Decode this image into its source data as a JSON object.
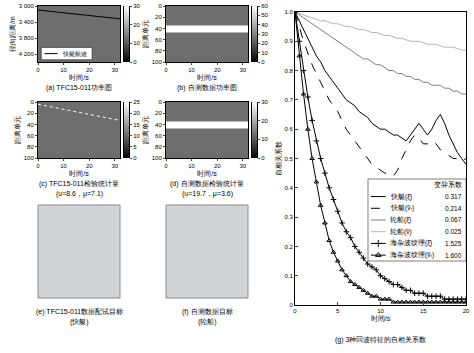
{
  "chart_data": [
    {
      "type": "line",
      "title": "(a) TFC15-011功率图",
      "xlabel": "时间/s",
      "ylabel": "径向距离/m",
      "xlim": [
        0,
        32
      ],
      "xticks": [
        0,
        10,
        20,
        30
      ],
      "ylim": [
        4400,
        3000
      ],
      "yticks": [
        {
          "value": 3000,
          "label": "3 000"
        },
        {
          "value": 3400,
          "label": "3 400"
        },
        {
          "value": 3800,
          "label": "3 800"
        },
        {
          "value": 4200,
          "label": "4 200"
        }
      ],
      "colorbar": {
        "range": [
          0,
          30
        ],
        "ticks": [
          0,
          10,
          20,
          30
        ]
      },
      "legend": "lower left",
      "series": [
        {
          "name": "快艇航迹",
          "color": "#000000",
          "line_style": "solid",
          "x": [
            0,
            32
          ],
          "values": [
            3100,
            3320
          ]
        }
      ]
    },
    {
      "type": "line",
      "title": "(b) 自测数据功率图",
      "xlabel": "时间/s",
      "ylabel": "距离单元",
      "xlim": [
        0,
        32
      ],
      "xticks": [
        0,
        10,
        20,
        30
      ],
      "ylim": [
        100,
        0
      ],
      "yticks": [
        0,
        20,
        40,
        60,
        80,
        100
      ],
      "colorbar": {
        "range": [
          0,
          60
        ],
        "ticks": [
          0,
          10,
          20,
          30,
          40,
          50,
          60
        ]
      },
      "series": [
        {
          "color": "#ffffff",
          "line_style": "band",
          "x": [
            0,
            32
          ],
          "values": [
            41,
            41
          ]
        }
      ]
    },
    {
      "type": "line",
      "title": "(c) TFC15-011检验统计量",
      "subtitle": "(υ=8.6，μ=7.1)",
      "xlabel": "时间/s",
      "ylabel": "距离单元",
      "xlim": [
        0,
        32
      ],
      "xticks": [
        0,
        10,
        20,
        30
      ],
      "ylim": [
        100,
        0
      ],
      "yticks": [
        0,
        20,
        40,
        60,
        80,
        100
      ],
      "colorbar": {
        "range": [
          0,
          25
        ],
        "ticks": [
          0,
          5,
          10,
          15,
          20,
          25
        ]
      },
      "series": [
        {
          "color": "#ffffff",
          "line_style": "dotted",
          "x": [
            0,
            32
          ],
          "values": [
            4,
            33
          ]
        }
      ]
    },
    {
      "type": "line",
      "title": "(d) 自测数据检验统计量",
      "subtitle": "(υ=19.7，μ=3.6)",
      "xlabel": "时间/s",
      "ylabel": "距离单元",
      "xlim": [
        0,
        32
      ],
      "xticks": [
        0,
        10,
        20,
        30
      ],
      "ylim": [
        100,
        0
      ],
      "yticks": [
        0,
        20,
        40,
        60,
        80,
        100
      ],
      "colorbar": {
        "range": [
          0,
          30
        ],
        "ticks": [
          0,
          10,
          20,
          30
        ]
      },
      "series": [
        {
          "color": "#ffffff",
          "line_style": "band",
          "x": [
            0,
            32
          ],
          "values": [
            41,
            41
          ]
        }
      ]
    },
    {
      "type": "image",
      "title": "(e) TFC15-011数据配试目标",
      "subtitle": "(快艇)"
    },
    {
      "type": "image",
      "title": "(f) 自测数据目标",
      "subtitle": "(轮船)"
    },
    {
      "type": "line",
      "title": "(g) 3种回波特征的自相关系数",
      "xlabel": "时间/s",
      "ylabel": "自相关系数",
      "xlim": [
        0,
        20
      ],
      "xticks": [
        0,
        5,
        10,
        15,
        20
      ],
      "ylim": [
        0,
        1
      ],
      "yticks": [
        0,
        0.1,
        0.2,
        0.3,
        0.4,
        0.5,
        0.6,
        0.7,
        0.8,
        0.9,
        {
          "value": 1,
          "label": "1.0"
        }
      ],
      "legend": "right",
      "legend_title": "变异系数",
      "x": [
        0,
        0.5,
        1,
        1.5,
        2,
        2.5,
        3,
        3.5,
        4,
        4.5,
        5,
        5.5,
        6,
        6.5,
        7,
        7.5,
        8,
        8.5,
        9,
        9.5,
        10,
        10.5,
        11,
        11.5,
        12,
        12.5,
        13,
        13.5,
        14,
        14.5,
        15,
        15.5,
        16,
        16.5,
        17,
        17.5,
        18,
        18.5,
        19,
        19.5,
        20
      ],
      "series": [
        {
          "name": "快艇(ξ̂)",
          "color": "#000000",
          "line_style": "solid",
          "variation_coefficient": 0.317,
          "values": [
            1,
            0.97,
            0.94,
            0.91,
            0.88,
            0.85,
            0.83,
            0.8,
            0.78,
            0.76,
            0.74,
            0.72,
            0.7,
            0.69,
            0.68,
            0.66,
            0.65,
            0.64,
            0.62,
            0.61,
            0.6,
            0.6,
            0.59,
            0.58,
            0.58,
            0.57,
            0.56,
            0.58,
            0.6,
            0.62,
            0.6,
            0.58,
            0.6,
            0.63,
            0.65,
            0.62,
            0.58,
            0.55,
            0.52,
            0.5,
            0.48
          ]
        },
        {
          "name": "快艇(v̂ᵣ)",
          "color": "#000000",
          "line_style": "dashed",
          "variation_coefficient": 0.214,
          "values": [
            1,
            0.95,
            0.9,
            0.86,
            0.82,
            0.79,
            0.76,
            0.73,
            0.7,
            0.68,
            0.66,
            0.63,
            0.6,
            0.58,
            0.56,
            0.54,
            0.52,
            0.5,
            0.48,
            0.47,
            0.46,
            0.45,
            0.45,
            0.44,
            0.46,
            0.5,
            0.53,
            0.56,
            0.58,
            0.57,
            0.55,
            0.55,
            0.56,
            0.55,
            0.53,
            0.52,
            0.51,
            0.5,
            0.5,
            0.49,
            0.5
          ]
        },
        {
          "name": "轮船(ξ̂)",
          "color": "#7f7f7f",
          "line_style": "solid",
          "variation_coefficient": 0.067,
          "values": [
            1,
            0.99,
            0.98,
            0.97,
            0.96,
            0.95,
            0.94,
            0.93,
            0.92,
            0.91,
            0.9,
            0.89,
            0.88,
            0.87,
            0.86,
            0.85,
            0.84,
            0.84,
            0.83,
            0.82,
            0.82,
            0.81,
            0.8,
            0.8,
            0.79,
            0.79,
            0.78,
            0.78,
            0.77,
            0.77,
            0.76,
            0.76,
            0.75,
            0.75,
            0.75,
            0.74,
            0.74,
            0.73,
            0.73,
            0.72,
            0.72
          ]
        },
        {
          "name": "轮船(v̂)",
          "color": "#b5b5b5",
          "line_style": "solid",
          "variation_coefficient": 0.025,
          "values": [
            1,
            0.995,
            0.99,
            0.985,
            0.98,
            0.975,
            0.97,
            0.97,
            0.965,
            0.96,
            0.96,
            0.955,
            0.95,
            0.95,
            0.945,
            0.94,
            0.94,
            0.935,
            0.93,
            0.93,
            0.925,
            0.92,
            0.92,
            0.915,
            0.91,
            0.91,
            0.905,
            0.9,
            0.9,
            0.9,
            0.895,
            0.89,
            0.89,
            0.89,
            0.885,
            0.88,
            0.88,
            0.88,
            0.875,
            0.87,
            0.87
          ]
        },
        {
          "name": "海杂波纹理(ξ̂)",
          "color": "#000000",
          "line_style": "solid",
          "marker": "cross",
          "variation_coefficient": 1.525,
          "values": [
            1,
            0.9,
            0.8,
            0.71,
            0.63,
            0.56,
            0.5,
            0.45,
            0.4,
            0.36,
            0.32,
            0.28,
            0.25,
            0.23,
            0.2,
            0.18,
            0.16,
            0.14,
            0.13,
            0.12,
            0.1,
            0.09,
            0.08,
            0.07,
            0.07,
            0.06,
            0.05,
            0.05,
            0.04,
            0.04,
            0.04,
            0.03,
            0.03,
            0.03,
            0.03,
            0.02,
            0.02,
            0.02,
            0.02,
            0.02,
            0.02
          ]
        },
        {
          "name": "海杂波纹理(v̂ᵣ)",
          "color": "#000000",
          "line_style": "solid",
          "marker": "triangle",
          "variation_coefficient": {
            "value": 1.6,
            "label": "1.600"
          },
          "values": [
            1,
            0.85,
            0.72,
            0.6,
            0.5,
            0.42,
            0.34,
            0.28,
            0.22,
            0.18,
            0.15,
            0.12,
            0.1,
            0.08,
            0.07,
            0.06,
            0.05,
            0.04,
            0.03,
            0.03,
            0.02,
            0.02,
            0.02,
            0.01,
            0.01,
            0.01,
            0.01,
            0.01,
            0.01,
            0.01,
            0.01,
            0.01,
            0.01,
            0.01,
            0.01,
            0.01,
            0.01,
            0.01,
            0.01,
            0.01,
            0.01
          ]
        }
      ]
    }
  ]
}
